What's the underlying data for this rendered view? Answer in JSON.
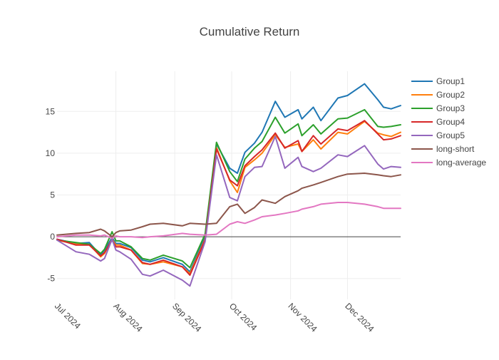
{
  "chart_data": {
    "type": "line",
    "title": "Cumulative Return",
    "xlabel": "",
    "ylabel": "",
    "grid": true,
    "legend_position": "top-right",
    "x_range": [
      0,
      181
    ],
    "ylim": [
      -7.5,
      19.8
    ],
    "y_ticks": [
      -5,
      0,
      5,
      10,
      15
    ],
    "x_ticks": [
      {
        "label": "Jul 2024",
        "day": 0
      },
      {
        "label": "Aug 2024",
        "day": 31
      },
      {
        "label": "Sep 2024",
        "day": 62
      },
      {
        "label": "Oct 2024",
        "day": 92
      },
      {
        "label": "Nov 2024",
        "day": 123
      },
      {
        "label": "Dec 2024",
        "day": 153
      }
    ],
    "x_days": [
      0,
      10,
      17,
      23,
      25,
      29,
      31,
      33,
      39,
      45,
      49,
      56,
      66,
      70,
      78,
      84,
      91,
      95,
      99,
      104,
      108,
      115,
      120,
      127,
      129,
      135,
      139,
      148,
      153,
      162,
      169,
      172,
      176,
      181
    ],
    "series": [
      {
        "name": "Group1",
        "color": "#1f77b4",
        "values": [
          -0.3,
          -0.8,
          -0.7,
          -2.2,
          -1.6,
          -0.1,
          -0.8,
          -0.8,
          -1.3,
          -2.8,
          -3.0,
          -2.5,
          -3.3,
          -4.2,
          0.0,
          11.1,
          8.2,
          7.6,
          10.1,
          11.2,
          12.5,
          16.2,
          14.3,
          15.2,
          14.1,
          15.5,
          13.9,
          16.6,
          16.9,
          18.3,
          16.4,
          15.5,
          15.3,
          15.7
        ]
      },
      {
        "name": "Group2",
        "color": "#ff7f0e",
        "values": [
          -0.4,
          -0.9,
          -0.9,
          -2.4,
          -2.0,
          -0.3,
          -1.0,
          -1.0,
          -1.6,
          -3.2,
          -3.3,
          -3.0,
          -3.6,
          -4.4,
          -0.3,
          10.7,
          6.7,
          5.3,
          8.3,
          9.2,
          10.0,
          12.2,
          10.7,
          11.1,
          10.2,
          11.6,
          10.5,
          12.5,
          12.3,
          13.8,
          12.4,
          12.2,
          12.0,
          12.5
        ]
      },
      {
        "name": "Group3",
        "color": "#2ca02c",
        "values": [
          -0.4,
          -0.7,
          -0.9,
          -2.0,
          -1.5,
          0.6,
          -0.5,
          -0.5,
          -1.2,
          -2.6,
          -2.8,
          -2.2,
          -2.9,
          -3.7,
          0.3,
          11.3,
          7.8,
          6.6,
          9.3,
          10.6,
          11.4,
          14.3,
          12.4,
          13.5,
          12.1,
          13.4,
          12.3,
          14.1,
          14.2,
          15.2,
          13.2,
          13.1,
          13.2,
          13.4
        ]
      },
      {
        "name": "Group4",
        "color": "#d62728",
        "values": [
          -0.3,
          -1.0,
          -1.0,
          -2.3,
          -1.9,
          -0.4,
          -1.2,
          -1.2,
          -1.6,
          -3.1,
          -3.3,
          -2.8,
          -3.6,
          -4.6,
          -0.4,
          10.5,
          6.8,
          6.1,
          8.5,
          9.6,
          10.4,
          12.4,
          10.6,
          11.5,
          10.2,
          12.1,
          11.1,
          12.9,
          12.7,
          13.9,
          12.3,
          11.6,
          11.7,
          12.1
        ]
      },
      {
        "name": "Group5",
        "color": "#9467bd",
        "values": [
          -0.4,
          -1.8,
          -2.1,
          -2.9,
          -2.6,
          -0.3,
          -1.6,
          -1.8,
          -2.7,
          -4.5,
          -4.7,
          -4.0,
          -5.2,
          -5.9,
          -0.6,
          9.8,
          4.7,
          4.3,
          7.2,
          8.3,
          8.4,
          12.0,
          8.2,
          9.5,
          8.4,
          7.8,
          8.2,
          9.8,
          9.6,
          10.9,
          8.7,
          8.1,
          8.4,
          8.3
        ]
      },
      {
        "name": "long-short",
        "color": "#8c564b",
        "values": [
          0.2,
          0.4,
          0.5,
          0.9,
          0.7,
          0.0,
          0.5,
          0.7,
          0.8,
          1.2,
          1.5,
          1.6,
          1.3,
          1.6,
          1.5,
          1.6,
          3.6,
          3.9,
          2.8,
          3.5,
          4.4,
          4.0,
          4.8,
          5.5,
          5.8,
          6.2,
          6.5,
          7.2,
          7.5,
          7.6,
          7.4,
          7.3,
          7.2,
          7.4
        ]
      },
      {
        "name": "long-average",
        "color": "#e377c2",
        "values": [
          0.0,
          0.2,
          0.2,
          0.1,
          0.2,
          -0.2,
          0.1,
          0.0,
          0.0,
          -0.1,
          0.0,
          0.1,
          0.4,
          0.3,
          0.2,
          0.3,
          1.5,
          1.8,
          1.6,
          2.0,
          2.4,
          2.6,
          2.8,
          3.1,
          3.3,
          3.6,
          3.9,
          4.1,
          4.1,
          3.9,
          3.6,
          3.4,
          3.4,
          3.4
        ]
      }
    ]
  }
}
